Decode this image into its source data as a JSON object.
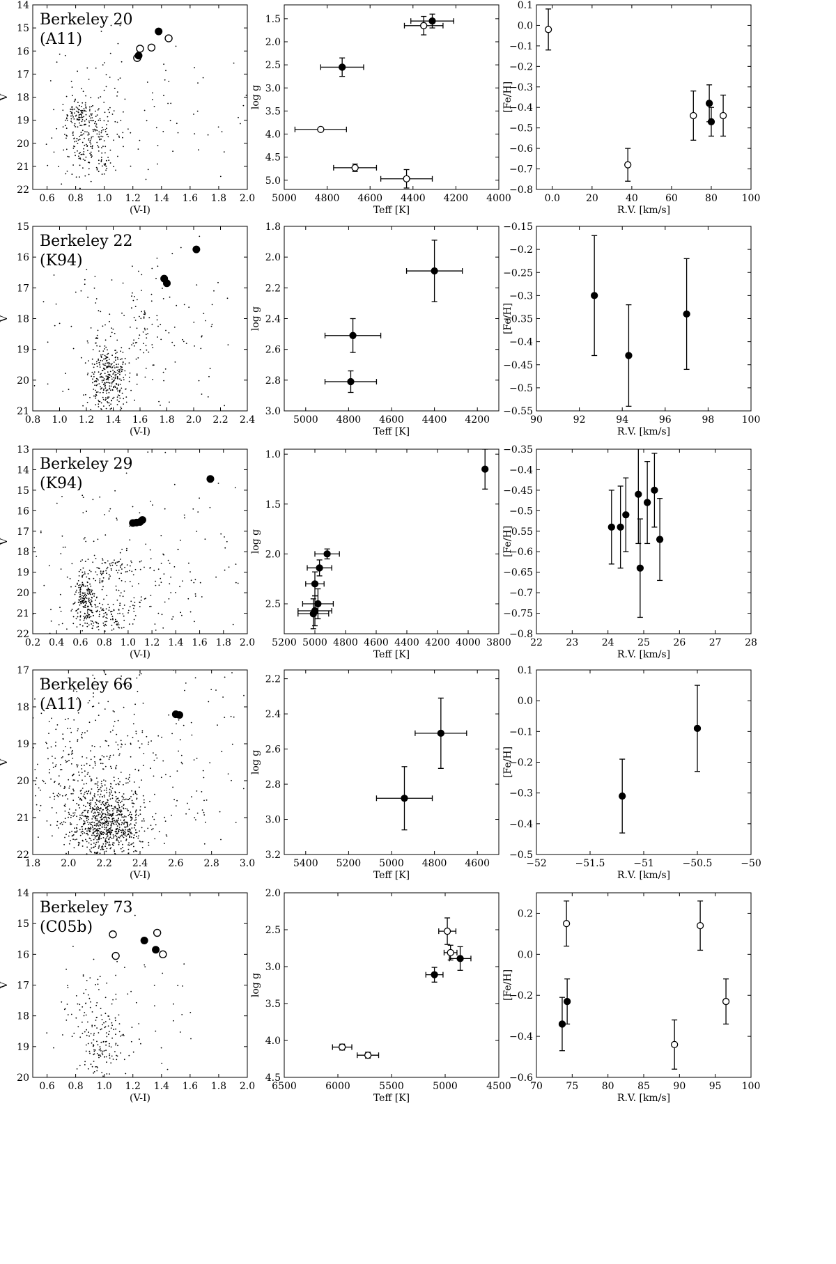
{
  "chart_data": [
    {
      "type": "scatter",
      "panel": "cmd",
      "title": "Berkeley 20",
      "subtitle": "(A11)",
      "xlabel": "(V-I)",
      "ylabel": "V",
      "xlim": [
        0.5,
        2.0
      ],
      "ylim": [
        14,
        22
      ],
      "y_inverted": true,
      "xticks": [
        0.6,
        0.8,
        1.0,
        1.2,
        1.4,
        1.6,
        1.8,
        2.0
      ],
      "yticks": [
        14,
        15,
        16,
        17,
        18,
        19,
        20,
        21,
        22
      ],
      "background_stars": {
        "count": 420,
        "seed": 11,
        "clumps": [
          {
            "x": 0.82,
            "y": 18.8,
            "sx": 0.05,
            "sy": 0.3,
            "w": 0.25
          },
          {
            "x": 0.9,
            "y": 20.0,
            "sx": 0.12,
            "sy": 0.9,
            "w": 0.45
          },
          {
            "x": 1.15,
            "y": 19.0,
            "sx": 0.45,
            "sy": 2.0,
            "w": 0.3
          }
        ]
      },
      "stars_filled": [
        {
          "x": 1.38,
          "y": 15.15
        },
        {
          "x": 1.24,
          "y": 16.2
        }
      ],
      "stars_open": [
        {
          "x": 1.45,
          "y": 15.45
        },
        {
          "x": 1.33,
          "y": 15.85
        },
        {
          "x": 1.25,
          "y": 15.9
        },
        {
          "x": 1.23,
          "y": 16.3
        }
      ]
    },
    {
      "type": "scatter",
      "panel": "teff_logg",
      "xlabel": "Teff [K]",
      "ylabel": "log g",
      "xlim": [
        5000,
        4000
      ],
      "ylim": [
        5.2,
        1.2
      ],
      "xticks": [
        5000,
        4800,
        4600,
        4400,
        4200,
        4000
      ],
      "yticks": [
        1.5,
        2.0,
        2.5,
        3.0,
        3.5,
        4.0,
        4.5,
        5.0
      ],
      "points": [
        {
          "x": 4310,
          "y": 1.55,
          "xerr": 100,
          "yerr": 0.15,
          "filled": true
        },
        {
          "x": 4350,
          "y": 1.65,
          "xerr": 90,
          "yerr": 0.2,
          "filled": false
        },
        {
          "x": 4730,
          "y": 2.55,
          "xerr": 100,
          "yerr": 0.2,
          "filled": true
        },
        {
          "x": 4830,
          "y": 3.9,
          "xerr": 120,
          "yerr": 0.0,
          "filled": false
        },
        {
          "x": 4670,
          "y": 4.73,
          "xerr": 100,
          "yerr": 0.08,
          "filled": false
        },
        {
          "x": 4430,
          "y": 4.97,
          "xerr": 120,
          "yerr": 0.2,
          "filled": false
        }
      ]
    },
    {
      "type": "scatter",
      "panel": "rv_feh",
      "xlabel": "R.V. [km/s]",
      "ylabel": "[Fe/H]",
      "xlim": [
        -8,
        100
      ],
      "ylim": [
        -0.8,
        0.1
      ],
      "xticks": [
        0,
        20,
        40,
        60,
        80,
        100
      ],
      "yticks": [
        -0.8,
        -0.7,
        -0.6,
        -0.5,
        -0.4,
        -0.3,
        -0.2,
        -0.1,
        0.0,
        0.1
      ],
      "points": [
        {
          "x": -2,
          "y": -0.02,
          "yerr": 0.1,
          "filled": false
        },
        {
          "x": 38,
          "y": -0.68,
          "yerr": 0.08,
          "filled": false
        },
        {
          "x": 71,
          "y": -0.44,
          "yerr": 0.12,
          "filled": false
        },
        {
          "x": 79,
          "y": -0.38,
          "yerr": 0.09,
          "filled": true
        },
        {
          "x": 80,
          "y": -0.47,
          "yerr": 0.07,
          "filled": true
        },
        {
          "x": 86,
          "y": -0.44,
          "yerr": 0.1,
          "filled": false
        }
      ]
    },
    {
      "type": "scatter",
      "panel": "cmd",
      "title": "Berkeley 22",
      "subtitle": "(K94)",
      "xlabel": "(V-I)",
      "ylabel": "V",
      "xlim": [
        0.8,
        2.4
      ],
      "ylim": [
        15,
        21
      ],
      "y_inverted": true,
      "xticks": [
        0.8,
        1.0,
        1.2,
        1.4,
        1.6,
        1.8,
        2.0,
        2.2,
        2.4
      ],
      "yticks": [
        15,
        16,
        17,
        18,
        19,
        20,
        21
      ],
      "background_stars": {
        "count": 520,
        "seed": 22,
        "clumps": [
          {
            "x": 1.36,
            "y": 20.0,
            "sx": 0.07,
            "sy": 0.6,
            "w": 0.6
          },
          {
            "x": 1.6,
            "y": 18.5,
            "sx": 0.12,
            "sy": 1.0,
            "w": 0.15
          },
          {
            "x": 1.6,
            "y": 18.5,
            "sx": 0.5,
            "sy": 1.5,
            "w": 0.25
          }
        ]
      },
      "stars_filled": [
        {
          "x": 2.02,
          "y": 15.75
        },
        {
          "x": 1.78,
          "y": 16.7
        },
        {
          "x": 1.8,
          "y": 16.85
        }
      ],
      "stars_open": []
    },
    {
      "type": "scatter",
      "panel": "teff_logg",
      "xlabel": "Teff [K]",
      "ylabel": "log g",
      "xlim": [
        5100,
        4100
      ],
      "ylim": [
        3.0,
        1.8
      ],
      "xticks": [
        5000,
        4800,
        4600,
        4400,
        4200
      ],
      "yticks": [
        1.8,
        2.0,
        2.2,
        2.4,
        2.6,
        2.8,
        3.0
      ],
      "points": [
        {
          "x": 4400,
          "y": 2.09,
          "xerr": 130,
          "yerr": 0.2,
          "filled": true
        },
        {
          "x": 4780,
          "y": 2.51,
          "xerr": 130,
          "yerr": 0.11,
          "filled": true
        },
        {
          "x": 4790,
          "y": 2.81,
          "xerr": 120,
          "yerr": 0.07,
          "filled": true
        }
      ]
    },
    {
      "type": "scatter",
      "panel": "rv_feh",
      "xlabel": "R.V. [km/s]",
      "ylabel": "[Fe/H]",
      "xlim": [
        90,
        100
      ],
      "ylim": [
        -0.55,
        -0.15
      ],
      "xticks": [
        90,
        92,
        94,
        96,
        98,
        100
      ],
      "yticks": [
        -0.55,
        -0.5,
        -0.45,
        -0.4,
        -0.35,
        -0.3,
        -0.25,
        -0.2,
        -0.15
      ],
      "points": [
        {
          "x": 92.7,
          "y": -0.3,
          "yerr": 0.13,
          "filled": true
        },
        {
          "x": 94.3,
          "y": -0.43,
          "yerr": 0.11,
          "filled": true
        },
        {
          "x": 97.0,
          "y": -0.34,
          "yerr": 0.12,
          "filled": true
        }
      ]
    },
    {
      "type": "scatter",
      "panel": "cmd",
      "title": "Berkeley 29",
      "subtitle": "(K94)",
      "xlabel": "(V-I)",
      "ylabel": "V",
      "xlim": [
        0.2,
        2.0
      ],
      "ylim": [
        13,
        22
      ],
      "y_inverted": true,
      "xticks": [
        0.2,
        0.4,
        0.6,
        0.8,
        1.0,
        1.2,
        1.4,
        1.6,
        1.8,
        2.0
      ],
      "yticks": [
        13,
        14,
        15,
        16,
        17,
        18,
        19,
        20,
        21,
        22
      ],
      "background_stars": {
        "count": 600,
        "seed": 29,
        "clumps": [
          {
            "x": 0.65,
            "y": 20.2,
            "sx": 0.05,
            "sy": 0.6,
            "w": 0.3
          },
          {
            "x": 0.8,
            "y": 21.2,
            "sx": 0.1,
            "sy": 0.5,
            "w": 0.2
          },
          {
            "x": 0.85,
            "y": 18.8,
            "sx": 0.12,
            "sy": 0.3,
            "w": 0.1
          },
          {
            "x": 1.1,
            "y": 19.0,
            "sx": 0.5,
            "sy": 2.4,
            "w": 0.4
          }
        ]
      },
      "stars_filled": [
        {
          "x": 1.69,
          "y": 14.45
        },
        {
          "x": 1.04,
          "y": 16.6
        },
        {
          "x": 1.07,
          "y": 16.58
        },
        {
          "x": 1.1,
          "y": 16.55
        },
        {
          "x": 1.12,
          "y": 16.45
        }
      ],
      "stars_open": []
    },
    {
      "type": "scatter",
      "panel": "teff_logg",
      "xlabel": "Teff [K]",
      "ylabel": "log g",
      "xlim": [
        5200,
        3800
      ],
      "ylim": [
        2.8,
        0.95
      ],
      "xticks": [
        5200,
        5000,
        4800,
        4600,
        4400,
        4200,
        4000,
        3800
      ],
      "yticks": [
        1.0,
        1.5,
        2.0,
        2.5
      ],
      "points": [
        {
          "x": 3890,
          "y": 1.15,
          "xerr": 0,
          "yerr": 0.2,
          "filled": true
        },
        {
          "x": 4920,
          "y": 2.0,
          "xerr": 80,
          "yerr": 0.05,
          "filled": true
        },
        {
          "x": 4970,
          "y": 2.14,
          "xerr": 80,
          "yerr": 0.08,
          "filled": true
        },
        {
          "x": 5000,
          "y": 2.3,
          "xerr": 60,
          "yerr": 0.12,
          "filled": true
        },
        {
          "x": 4980,
          "y": 2.5,
          "xerr": 100,
          "yerr": 0.15,
          "filled": true
        },
        {
          "x": 5000,
          "y": 2.57,
          "xerr": 110,
          "yerr": 0.15,
          "filled": true
        },
        {
          "x": 5010,
          "y": 2.6,
          "xerr": 100,
          "yerr": 0.15,
          "filled": true
        }
      ]
    },
    {
      "type": "scatter",
      "panel": "rv_feh",
      "xlabel": "R.V. [km/s]",
      "ylabel": "[Fe/H]",
      "xlim": [
        22,
        28
      ],
      "ylim": [
        -0.8,
        -0.35
      ],
      "xticks": [
        22,
        23,
        24,
        25,
        26,
        27,
        28
      ],
      "yticks": [
        -0.8,
        -0.75,
        -0.7,
        -0.65,
        -0.6,
        -0.55,
        -0.5,
        -0.45,
        -0.4,
        -0.35
      ],
      "points": [
        {
          "x": 24.1,
          "y": -0.54,
          "yerr": 0.09,
          "filled": true
        },
        {
          "x": 24.35,
          "y": -0.54,
          "yerr": 0.1,
          "filled": true
        },
        {
          "x": 24.5,
          "y": -0.51,
          "yerr": 0.09,
          "filled": true
        },
        {
          "x": 24.85,
          "y": -0.46,
          "yerr": 0.12,
          "filled": true
        },
        {
          "x": 24.9,
          "y": -0.64,
          "yerr": 0.12,
          "filled": true
        },
        {
          "x": 25.1,
          "y": -0.48,
          "yerr": 0.1,
          "filled": true
        },
        {
          "x": 25.3,
          "y": -0.45,
          "yerr": 0.09,
          "filled": true
        },
        {
          "x": 25.45,
          "y": -0.57,
          "yerr": 0.1,
          "filled": true
        }
      ]
    },
    {
      "type": "scatter",
      "panel": "cmd",
      "title": "Berkeley 66",
      "subtitle": "(A11)",
      "xlabel": "(V-I)",
      "ylabel": "V",
      "xlim": [
        1.8,
        3.0
      ],
      "ylim": [
        17,
        22
      ],
      "y_inverted": true,
      "xticks": [
        1.8,
        2.0,
        2.2,
        2.4,
        2.6,
        2.8,
        3.0
      ],
      "yticks": [
        17,
        18,
        19,
        20,
        21,
        22
      ],
      "background_stars": {
        "count": 1300,
        "seed": 66,
        "clumps": [
          {
            "x": 2.22,
            "y": 21.2,
            "sx": 0.1,
            "sy": 0.5,
            "w": 0.55
          },
          {
            "x": 2.1,
            "y": 20.0,
            "sx": 0.18,
            "sy": 1.0,
            "w": 0.25
          },
          {
            "x": 2.4,
            "y": 19.5,
            "sx": 0.35,
            "sy": 1.6,
            "w": 0.2
          }
        ]
      },
      "stars_filled": [
        {
          "x": 2.6,
          "y": 18.2
        },
        {
          "x": 2.62,
          "y": 18.22
        }
      ],
      "stars_open": []
    },
    {
      "type": "scatter",
      "panel": "teff_logg",
      "xlabel": "Teff [K]",
      "ylabel": "log g",
      "xlim": [
        5500,
        4500
      ],
      "ylim": [
        3.2,
        2.15
      ],
      "xticks": [
        5400,
        5200,
        5000,
        4800,
        4600
      ],
      "yticks": [
        2.2,
        2.4,
        2.6,
        2.8,
        3.0,
        3.2
      ],
      "points": [
        {
          "x": 4770,
          "y": 2.51,
          "xerr": 120,
          "yerr": 0.2,
          "filled": true
        },
        {
          "x": 4940,
          "y": 2.88,
          "xerr": 130,
          "yerr": 0.18,
          "filled": true
        }
      ]
    },
    {
      "type": "scatter",
      "panel": "rv_feh",
      "xlabel": "R.V. [km/s]",
      "ylabel": "[Fe/H]",
      "xlim": [
        -52.0,
        -50.0
      ],
      "ylim": [
        -0.5,
        0.1
      ],
      "xticks": [
        -52.0,
        -51.5,
        -51.0,
        -50.5,
        -50.0
      ],
      "yticks": [
        -0.5,
        -0.4,
        -0.3,
        -0.2,
        -0.1,
        0.0,
        0.1
      ],
      "points": [
        {
          "x": -51.2,
          "y": -0.31,
          "yerr": 0.12,
          "filled": true
        },
        {
          "x": -50.5,
          "y": -0.09,
          "yerr": 0.14,
          "filled": true
        }
      ]
    },
    {
      "type": "scatter",
      "panel": "cmd",
      "title": "Berkeley 73",
      "subtitle": "(C05b)",
      "xlabel": "(V-I)",
      "ylabel": "V",
      "xlim": [
        0.5,
        2.0
      ],
      "ylim": [
        14,
        20
      ],
      "y_inverted": true,
      "xticks": [
        0.6,
        0.8,
        1.0,
        1.2,
        1.4,
        1.6,
        1.8,
        2.0
      ],
      "yticks": [
        14,
        15,
        16,
        17,
        18,
        19,
        20
      ],
      "background_stars": {
        "count": 230,
        "seed": 73,
        "clumps": [
          {
            "x": 0.98,
            "y": 19.0,
            "sx": 0.08,
            "sy": 0.7,
            "w": 0.55
          },
          {
            "x": 0.9,
            "y": 18.0,
            "sx": 0.12,
            "sy": 0.9,
            "w": 0.3
          },
          {
            "x": 1.3,
            "y": 18.0,
            "sx": 0.35,
            "sy": 1.5,
            "w": 0.15
          }
        ]
      },
      "stars_filled": [
        {
          "x": 1.28,
          "y": 15.55
        },
        {
          "x": 1.36,
          "y": 15.85
        }
      ],
      "stars_open": [
        {
          "x": 1.06,
          "y": 15.35
        },
        {
          "x": 1.37,
          "y": 15.3
        },
        {
          "x": 1.08,
          "y": 16.05
        },
        {
          "x": 1.41,
          "y": 16.0
        }
      ]
    },
    {
      "type": "scatter",
      "panel": "teff_logg",
      "xlabel": "Teff [K]",
      "ylabel": "log g",
      "xlim": [
        6500,
        4500
      ],
      "ylim": [
        4.5,
        2.0
      ],
      "xticks": [
        6500,
        6000,
        5500,
        5000,
        4500
      ],
      "yticks": [
        2.0,
        2.5,
        3.0,
        3.5,
        4.0,
        4.5
      ],
      "points": [
        {
          "x": 4980,
          "y": 2.52,
          "xerr": 80,
          "yerr": 0.18,
          "filled": false
        },
        {
          "x": 4950,
          "y": 2.81,
          "xerr": 60,
          "yerr": 0.1,
          "filled": false
        },
        {
          "x": 4860,
          "y": 2.89,
          "xerr": 100,
          "yerr": 0.16,
          "filled": true
        },
        {
          "x": 5100,
          "y": 3.11,
          "xerr": 80,
          "yerr": 0.1,
          "filled": true
        },
        {
          "x": 5960,
          "y": 4.09,
          "xerr": 90,
          "yerr": 0.04,
          "filled": false
        },
        {
          "x": 5720,
          "y": 4.2,
          "xerr": 100,
          "yerr": 0.04,
          "filled": false
        }
      ]
    },
    {
      "type": "scatter",
      "panel": "rv_feh",
      "xlabel": "R.V. [km/s]",
      "ylabel": "[Fe/H]",
      "xlim": [
        70,
        100
      ],
      "ylim": [
        -0.6,
        0.3
      ],
      "xticks": [
        70,
        75,
        80,
        85,
        90,
        95,
        100
      ],
      "yticks": [
        -0.6,
        -0.4,
        -0.2,
        0.0,
        0.2
      ],
      "points": [
        {
          "x": 74.2,
          "y": 0.15,
          "yerr": 0.11,
          "filled": false
        },
        {
          "x": 73.6,
          "y": -0.34,
          "yerr": 0.13,
          "filled": true
        },
        {
          "x": 74.3,
          "y": -0.23,
          "yerr": 0.11,
          "filled": true
        },
        {
          "x": 89.3,
          "y": -0.44,
          "yerr": 0.12,
          "filled": false
        },
        {
          "x": 92.9,
          "y": 0.14,
          "yerr": 0.12,
          "filled": false
        },
        {
          "x": 96.5,
          "y": -0.23,
          "yerr": 0.11,
          "filled": false
        }
      ]
    }
  ]
}
